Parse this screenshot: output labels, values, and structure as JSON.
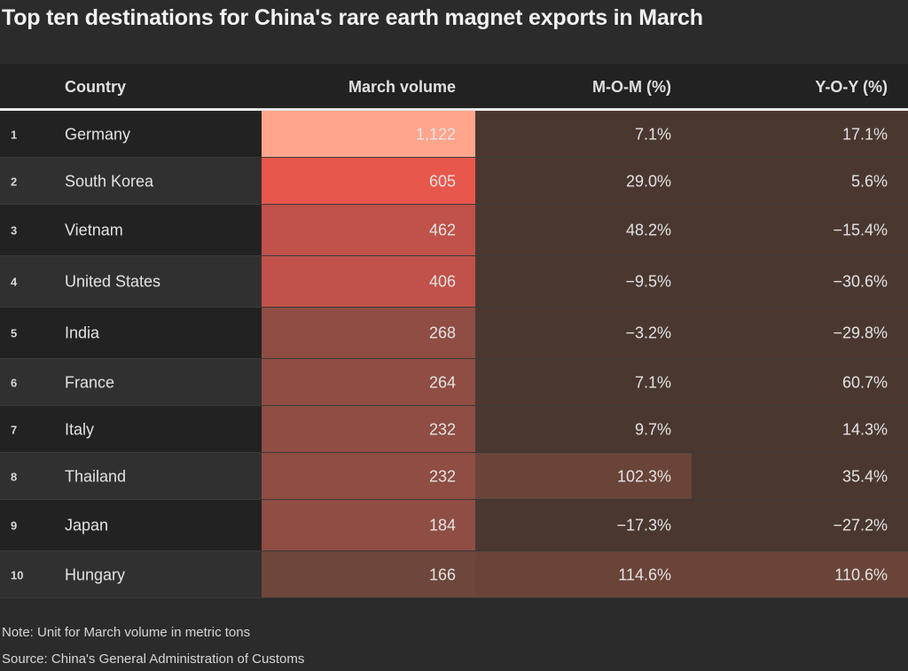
{
  "title": "Top ten destinations for China's rare earth magnet exports in March",
  "columns": {
    "rank": "",
    "country": "Country",
    "volume": "March volume",
    "mom": "M-O-M (%)",
    "yoy": "Y-O-Y (%)"
  },
  "colors": {
    "background": "#2b2b2b",
    "header_bar": "#222222",
    "vol_max": "#ffa58c",
    "vol_high": "#e8574b",
    "vol_mid": "#c0524a",
    "vol_low": "#8f4d43",
    "pct_base": "#4a3830",
    "pct_mid": "#6a4439"
  },
  "chart_data": {
    "type": "table",
    "rows": [
      {
        "rank": "1",
        "country": "Germany",
        "volume": "1,122",
        "mom": "7.1%",
        "yoy": "17.1%"
      },
      {
        "rank": "2",
        "country": "South Korea",
        "volume": "605",
        "mom": "29.0%",
        "yoy": "5.6%"
      },
      {
        "rank": "3",
        "country": "Vietnam",
        "volume": "462",
        "mom": "48.2%",
        "yoy": "−15.4%"
      },
      {
        "rank": "4",
        "country": "United States",
        "volume": "406",
        "mom": "−9.5%",
        "yoy": "−30.6%"
      },
      {
        "rank": "5",
        "country": "India",
        "volume": "268",
        "mom": "−3.2%",
        "yoy": "−29.8%"
      },
      {
        "rank": "6",
        "country": "France",
        "volume": "264",
        "mom": "7.1%",
        "yoy": "60.7%"
      },
      {
        "rank": "7",
        "country": "Italy",
        "volume": "232",
        "mom": "9.7%",
        "yoy": "14.3%"
      },
      {
        "rank": "8",
        "country": "Thailand",
        "volume": "232",
        "mom": "102.3%",
        "yoy": "35.4%"
      },
      {
        "rank": "9",
        "country": "Japan",
        "volume": "184",
        "mom": "−17.3%",
        "yoy": "−27.2%"
      },
      {
        "rank": "10",
        "country": "Hungary",
        "volume": "166",
        "mom": "114.6%",
        "yoy": "110.6%"
      }
    ]
  },
  "footer": {
    "note": "Note: Unit for March volume in metric tons",
    "source": "Source: China's General Administration of Customs"
  }
}
